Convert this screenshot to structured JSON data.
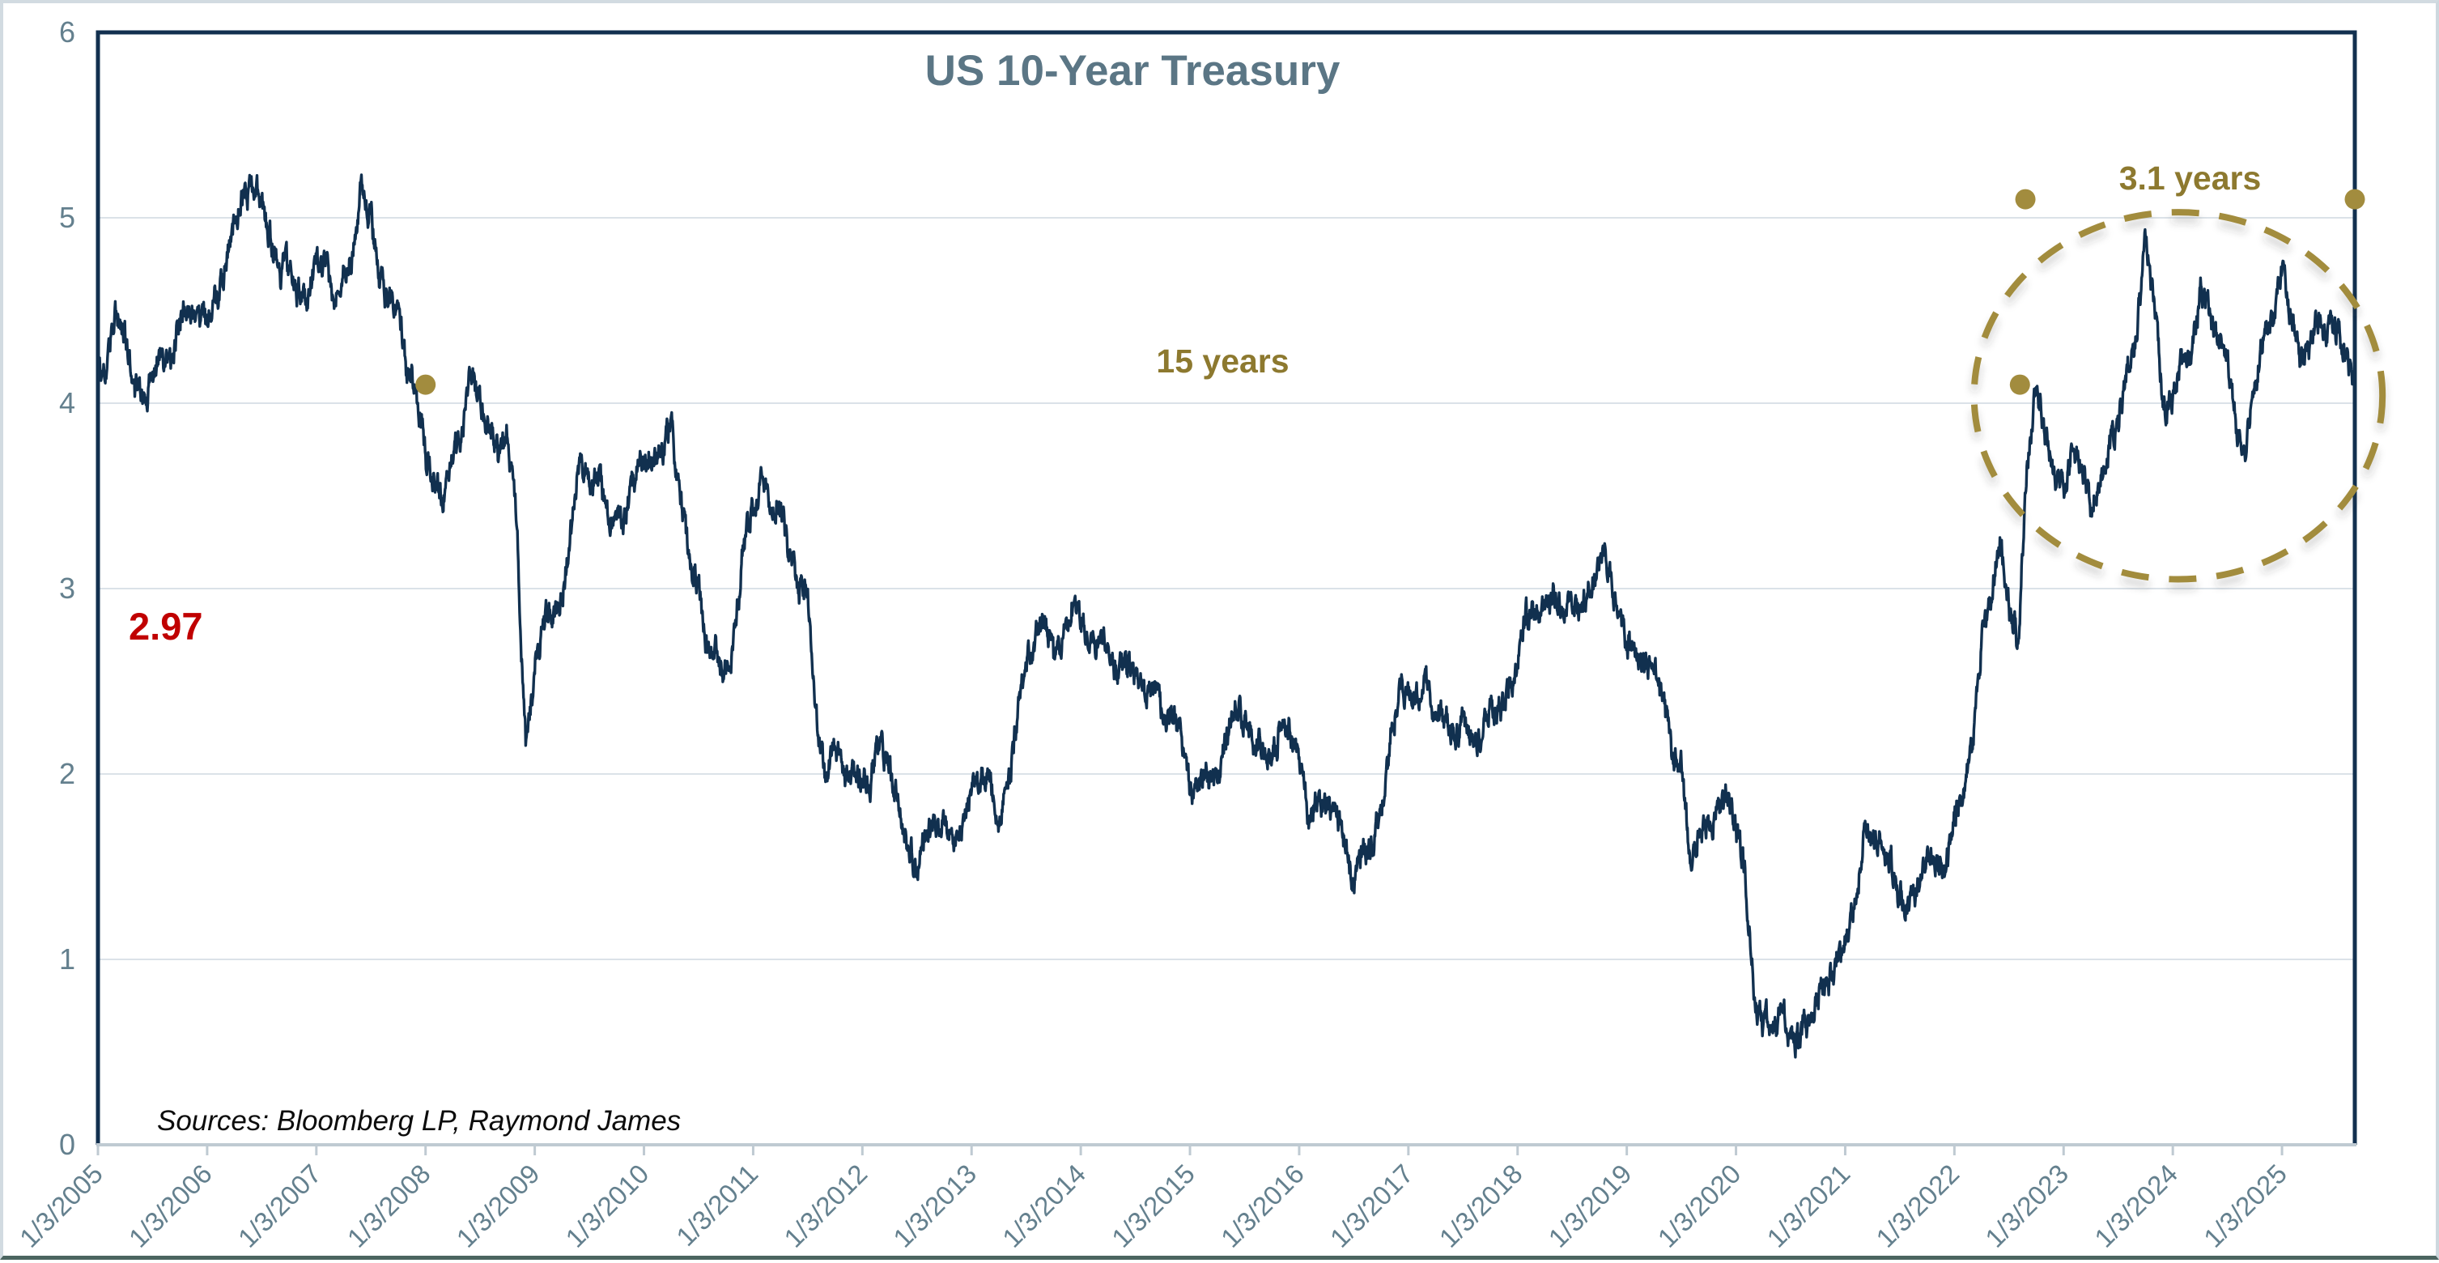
{
  "title": "US 10-Year Treasury",
  "source_note": "Sources: Bloomberg LP, Raymond James",
  "colors": {
    "series_line": "#11304f",
    "frame": "#12304f",
    "grid": "#dbe2e8",
    "bottom_axis": "#bfcad2",
    "axis_label": "#64808e",
    "title": "#5b7685",
    "gold": "#a28c3e",
    "gold_text": "#8d792f",
    "red": "#c00000"
  },
  "chart_data": {
    "type": "line",
    "title": "US 10-Year Treasury",
    "xlabel": "",
    "ylabel": "",
    "ylim": [
      0,
      6
    ],
    "y_ticks": [
      "0",
      "1",
      "2",
      "3",
      "4",
      "5",
      "6"
    ],
    "grid": "horizontal gridlines at integer yields",
    "legend": "none",
    "x_tick_labels": [
      "1/3/2005",
      "1/3/2006",
      "1/3/2007",
      "1/3/2008",
      "1/3/2009",
      "1/3/2010",
      "1/3/2011",
      "1/3/2012",
      "1/3/2013",
      "1/3/2014",
      "1/3/2015",
      "1/3/2016",
      "1/3/2017",
      "1/3/2018",
      "1/3/2019",
      "1/3/2020",
      "1/3/2021",
      "1/3/2022",
      "1/3/2023",
      "1/3/2024",
      "1/3/2025"
    ],
    "series": [
      {
        "name": "US 10-Year Treasury yield (%)",
        "x_unit": "monthly, Jan 2005 - Sep 2025",
        "values": [
          4.22,
          4.17,
          4.5,
          4.34,
          4.14,
          4.0,
          4.18,
          4.26,
          4.2,
          4.46,
          4.54,
          4.47,
          4.42,
          4.57,
          4.72,
          4.99,
          5.11,
          5.18,
          5.09,
          4.88,
          4.72,
          4.73,
          4.6,
          4.56,
          4.76,
          4.72,
          4.56,
          4.69,
          4.8,
          5.18,
          5.0,
          4.67,
          4.52,
          4.53,
          4.15,
          4.1,
          3.74,
          3.6,
          3.51,
          3.68,
          3.88,
          4.15,
          4.01,
          3.89,
          3.69,
          3.81,
          3.35,
          2.15,
          2.52,
          2.87,
          2.82,
          2.93,
          3.29,
          3.72,
          3.56,
          3.59,
          3.4,
          3.39,
          3.4,
          3.59,
          3.73,
          3.69,
          3.73,
          3.92,
          3.42,
          3.2,
          3.01,
          2.7,
          2.65,
          2.54,
          2.76,
          3.29,
          3.39,
          3.58,
          3.41,
          3.46,
          3.17,
          3.0,
          3.0,
          2.3,
          1.98,
          2.15,
          2.01,
          1.98,
          1.97,
          1.97,
          2.17,
          2.05,
          1.8,
          1.62,
          1.48,
          1.68,
          1.72,
          1.75,
          1.65,
          1.72,
          1.91,
          1.98,
          1.96,
          1.76,
          1.93,
          2.3,
          2.58,
          2.74,
          2.81,
          2.62,
          2.72,
          2.96,
          2.86,
          2.71,
          2.72,
          2.71,
          2.56,
          2.6,
          2.54,
          2.42,
          2.53,
          2.3,
          2.33,
          2.21,
          1.88,
          1.98,
          2.04,
          1.94,
          2.2,
          2.36,
          2.32,
          2.17,
          2.17,
          2.07,
          2.26,
          2.24,
          2.09,
          1.78,
          1.89,
          1.81,
          1.81,
          1.64,
          1.42,
          1.56,
          1.63,
          1.76,
          2.14,
          2.49,
          2.43,
          2.42,
          2.48,
          2.3,
          2.3,
          2.19,
          2.32,
          2.21,
          2.2,
          2.36,
          2.35,
          2.4,
          2.58,
          2.86,
          2.84,
          2.87,
          2.98,
          2.91,
          2.89,
          2.89,
          3.0,
          3.2,
          3.12,
          2.83,
          2.71,
          2.68,
          2.57,
          2.53,
          2.4,
          2.07,
          2.06,
          1.52,
          1.7,
          1.71,
          1.81,
          1.86,
          1.76,
          1.5,
          0.8,
          0.64,
          0.67,
          0.73,
          0.6,
          0.57,
          0.68,
          0.79,
          0.87,
          0.93,
          1.08,
          1.26,
          1.7,
          1.64,
          1.62,
          1.52,
          1.32,
          1.28,
          1.37,
          1.58,
          1.56,
          1.47,
          1.76,
          1.93,
          2.13,
          2.75,
          2.9,
          3.3,
          2.9,
          2.7,
          3.7,
          4.1,
          3.83,
          3.62,
          3.53,
          3.75,
          3.66,
          3.46,
          3.57,
          3.75,
          3.9,
          4.17,
          4.38,
          4.9,
          4.5,
          3.95,
          4.05,
          4.21,
          4.21,
          4.6,
          4.48,
          4.31,
          4.25,
          3.87,
          3.72,
          4.1,
          4.36,
          4.39,
          4.7,
          4.48,
          4.25,
          4.3,
          4.45,
          4.4,
          4.38,
          4.28,
          4.12
        ]
      }
    ],
    "annotations": {
      "reference_line": {
        "label": "2.97",
        "value": 2.97
      },
      "span_15_years": {
        "label": "15 years",
        "y_value": 4.1,
        "x_from_year": 2008.0,
        "x_to_year": 2022.6
      },
      "span_3_1_years": {
        "label": "3.1 years",
        "y_value": 5.1,
        "x_from_year": 2022.65,
        "x_to_year": 2025.75
      },
      "ellipse_highlight": {
        "center_year": 2024.05,
        "center_value": 4.04,
        "radius_years": 1.87,
        "radius_value": 0.99
      }
    }
  }
}
